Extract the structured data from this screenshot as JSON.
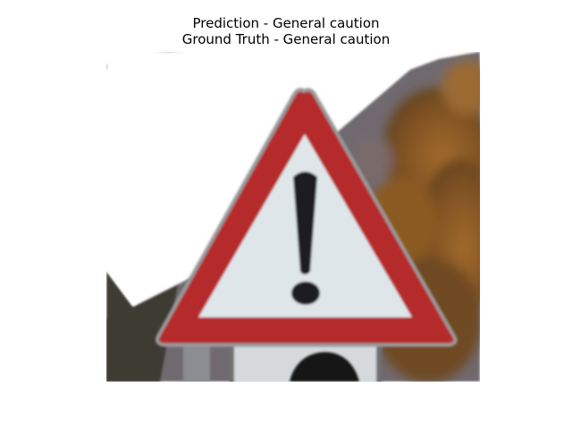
{
  "figure": {
    "title_lines": [
      "Prediction - General caution",
      "Ground Truth - General caution"
    ]
  },
  "image": {
    "subject": "general-caution-warning-sign",
    "colors": {
      "sky": "#ffffff",
      "roof": "#6f6b70",
      "foliage": "#8a5a24",
      "wall": "#3d3a33",
      "sign_border": "#b52a2a",
      "sign_face": "#dfe6ea",
      "exclamation": "#1d1d22",
      "lower_plate": "#d5d9db",
      "lower_symbol": "#141414"
    }
  }
}
